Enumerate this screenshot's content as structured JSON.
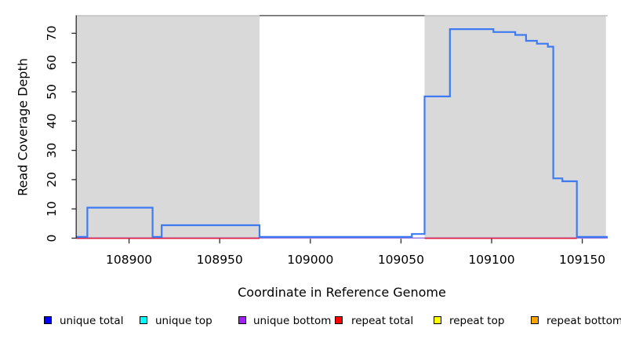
{
  "chart_data": {
    "type": "line",
    "subtype": "step-coverage",
    "title": "",
    "xlabel": "Coordinate in Reference Genome",
    "ylabel": "Read Coverage Depth",
    "xlim": [
      108871,
      109164
    ],
    "ylim": [
      0,
      76
    ],
    "x_ticks": [
      108900,
      108950,
      109000,
      109050,
      109100,
      109150
    ],
    "y_ticks": [
      0,
      10,
      20,
      30,
      40,
      50,
      60,
      70
    ],
    "grid": false,
    "legend_position": "bottom",
    "plot_background": "#ffffff",
    "repeat_region_fill": "#d9d9d9",
    "repeat_regions": [
      [
        108871,
        108972
      ],
      [
        109063,
        109163
      ]
    ],
    "series": [
      {
        "name": "unique total",
        "color": "#3e7bf2",
        "style": "step",
        "segments": [
          [
            108871,
            108877,
            0
          ],
          [
            108877,
            108913,
            10
          ],
          [
            108913,
            108918,
            0
          ],
          [
            108918,
            108972,
            4
          ],
          [
            108972,
            109056,
            0
          ],
          [
            109056,
            109063,
            1
          ],
          [
            109063,
            109077,
            48
          ],
          [
            109077,
            109101,
            71
          ],
          [
            109101,
            109113,
            70
          ],
          [
            109113,
            109119,
            69
          ],
          [
            109119,
            109125,
            67
          ],
          [
            109125,
            109131,
            66
          ],
          [
            109131,
            109134,
            65
          ],
          [
            109134,
            109139,
            20
          ],
          [
            109139,
            109147,
            19
          ],
          [
            109147,
            109164,
            0
          ]
        ]
      },
      {
        "name": "unique bottom baseline",
        "color": "#9370db",
        "style": "flat",
        "value": 0,
        "segments": [
          [
            108871,
            109164,
            0
          ]
        ]
      },
      {
        "name": "repeat total baseline",
        "color": "#dc2347",
        "style": "flat",
        "value": 0,
        "segments": [
          [
            108871,
            108972,
            0
          ],
          [
            109063,
            109147,
            0
          ]
        ]
      }
    ],
    "legend": [
      {
        "label": "unique total",
        "color": "#0000ff"
      },
      {
        "label": "unique top",
        "color": "#00ffff"
      },
      {
        "label": "unique bottom",
        "color": "#a020f0"
      },
      {
        "label": "repeat total",
        "color": "#ff0000"
      },
      {
        "label": "repeat top",
        "color": "#ffff00"
      },
      {
        "label": "repeat bottom",
        "color": "#ffa500"
      }
    ]
  }
}
